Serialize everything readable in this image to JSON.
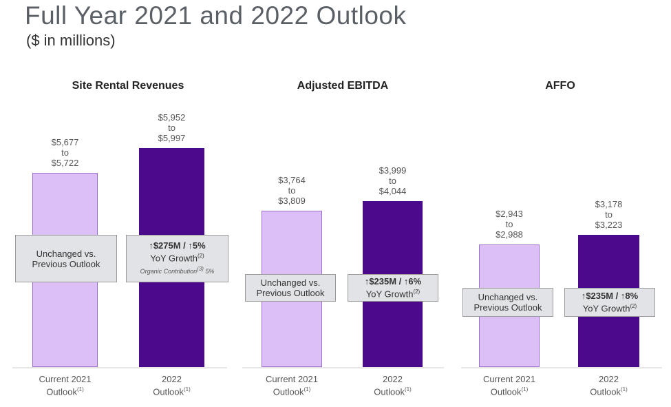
{
  "title": "Full Year 2021 and 2022 Outlook",
  "subtitle": "($ in millions)",
  "colors": {
    "current": "#dcc0f5",
    "current_border": "#9b6fd0",
    "outlook": "#4b0a8c"
  },
  "chart_data": [
    {
      "type": "bar",
      "title": "Site Rental Revenues",
      "categories": [
        "Current 2021 Outlook(1)",
        "2022 Outlook(1)"
      ],
      "category_lines": [
        [
          "Current 2021",
          "Outlook",
          "(1)"
        ],
        [
          "2022",
          "Outlook",
          "(1)"
        ]
      ],
      "values": [
        5722,
        5997
      ],
      "ranges": [
        [
          5677,
          5722
        ],
        [
          5952,
          5997
        ]
      ],
      "data_labels": [
        [
          "$5,677",
          "to",
          "$5,722"
        ],
        [
          "$5,952",
          "to",
          "$5,997"
        ]
      ],
      "ylim": [
        3568,
        6644
      ],
      "callouts": [
        {
          "lines": [
            "Unchanged vs.",
            "Previous Outlook"
          ]
        },
        {
          "lines": [
            "↑$275M / ↑5%",
            "YoY Growth"
          ],
          "sup": "(2)",
          "note": "Organic Contribution",
          "note_sup": "(3)",
          "note_value": "5%"
        }
      ]
    },
    {
      "type": "bar",
      "title": "Adjusted EBITDA",
      "categories": [
        "Current 2021 Outlook(1)",
        "2022 Outlook(1)"
      ],
      "category_lines": [
        [
          "Current 2021",
          "Outlook",
          "(1)"
        ],
        [
          "2022",
          "Outlook",
          "(1)"
        ]
      ],
      "values": [
        3809,
        4044
      ],
      "ranges": [
        [
          3764,
          3809
        ],
        [
          3999,
          4044
        ]
      ],
      "data_labels": [
        [
          "$3,764",
          "to",
          "$3,809"
        ],
        [
          "$3,999",
          "to",
          "$4,044"
        ]
      ],
      "ylim": [
        0,
        6760
      ],
      "callouts": [
        {
          "lines": [
            "Unchanged vs.",
            "Previous Outlook"
          ]
        },
        {
          "lines": [
            "↑$235M / ↑6%",
            "YoY Growth"
          ],
          "sup": "(2)"
        }
      ]
    },
    {
      "type": "bar",
      "title": "AFFO",
      "categories": [
        "Current 2021 Outlook(1)",
        "2022 Outlook(1)"
      ],
      "category_lines": [
        [
          "Current 2021",
          "Outlook",
          "(1)"
        ],
        [
          "2022",
          "Outlook",
          "(1)"
        ]
      ],
      "values": [
        2988,
        3223
      ],
      "ranges": [
        [
          2943,
          2988
        ],
        [
          3178,
          3223
        ]
      ],
      "data_labels": [
        [
          "$2,943",
          "to",
          "$2,988"
        ],
        [
          "$3,178",
          "to",
          "$3,223"
        ]
      ],
      "ylim": [
        0,
        6760
      ],
      "callouts": [
        {
          "lines": [
            "Unchanged vs.",
            "Previous Outlook"
          ]
        },
        {
          "lines": [
            "↑$235M / ↑8%",
            "YoY Growth"
          ],
          "sup": "(2)"
        }
      ]
    }
  ]
}
